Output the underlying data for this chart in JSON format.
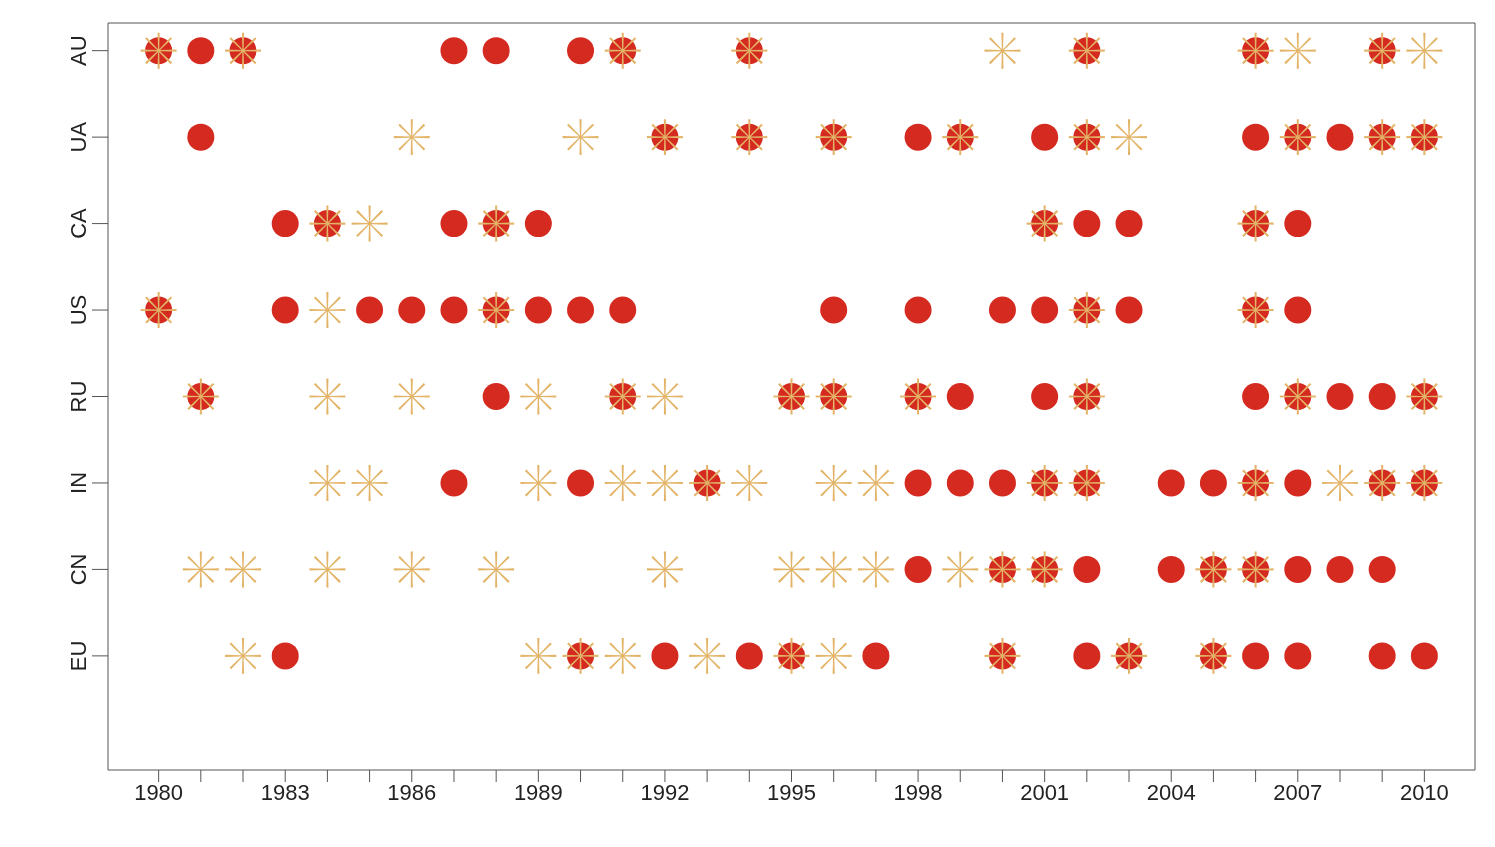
{
  "chart_data": {
    "type": "scatter",
    "orientation": "horizontal",
    "categories": [
      "AU",
      "UA",
      "CA",
      "US",
      "RU",
      "IN",
      "CN",
      "EU",
      null
    ],
    "xlim": [
      1978.8,
      2011.2
    ],
    "xticks": [
      1980,
      {
        "value": 1981,
        "label": null
      },
      {
        "value": 1982,
        "label": null
      },
      1983,
      {
        "value": 1984,
        "label": null
      },
      {
        "value": 1985,
        "label": null
      },
      1986,
      {
        "value": 1987,
        "label": null
      },
      {
        "value": 1988,
        "label": null
      },
      1989,
      {
        "value": 1990,
        "label": null
      },
      {
        "value": 1991,
        "label": null
      },
      1992,
      {
        "value": 1993,
        "label": null
      },
      {
        "value": 1994,
        "label": null
      },
      1995,
      {
        "value": 1996,
        "label": null
      },
      {
        "value": 1997,
        "label": null
      },
      1998,
      {
        "value": 1999,
        "label": null
      },
      {
        "value": 2000,
        "label": null
      },
      2001,
      {
        "value": 2002,
        "label": null
      },
      {
        "value": 2003,
        "label": null
      },
      2004,
      {
        "value": 2005,
        "label": null
      },
      {
        "value": 2006,
        "label": null
      },
      2007,
      {
        "value": 2008,
        "label": null
      },
      {
        "value": 2009,
        "label": null
      },
      2010
    ],
    "grid": false,
    "legend": false,
    "series": [
      {
        "color": "#d42a20",
        "marker": "circle",
        "values": [
          1980,
          1981,
          1982,
          1987,
          1988,
          1990,
          1991,
          1994,
          2002,
          2006,
          2009,
          1981,
          1992,
          1994,
          1996,
          1998,
          1999,
          2001,
          2002,
          2006,
          2007,
          2008,
          2009,
          2010,
          1983,
          1984,
          1987,
          1988,
          1989,
          2001,
          2002,
          2003,
          2006,
          2007,
          1980,
          1983,
          1985,
          1986,
          1987,
          1988,
          1989,
          1990,
          1991,
          1996,
          1998,
          2000,
          2001,
          2002,
          2003,
          2006,
          2007,
          1981,
          1988,
          1991,
          1995,
          1996,
          1998,
          1999,
          2001,
          2002,
          2006,
          2007,
          2008,
          2009,
          2010,
          1987,
          1990,
          1993,
          1998,
          1999,
          2000,
          2001,
          2002,
          2004,
          2005,
          2006,
          2007,
          2009,
          2010,
          1998,
          2000,
          2001,
          2002,
          2004,
          2005,
          2006,
          2007,
          2008,
          2009,
          1983,
          1990,
          1992,
          1994,
          1995,
          1997,
          2000,
          2002,
          2003,
          2005,
          2006,
          2007,
          2009,
          2010
        ],
        "x": [
          "AU",
          "AU",
          "AU",
          "AU",
          "AU",
          "AU",
          "AU",
          "AU",
          "AU",
          "AU",
          "AU",
          "UA",
          "UA",
          "UA",
          "UA",
          "UA",
          "UA",
          "UA",
          "UA",
          "UA",
          "UA",
          "UA",
          "UA",
          "UA",
          "CA",
          "CA",
          "CA",
          "CA",
          "CA",
          "CA",
          "CA",
          "CA",
          "CA",
          "CA",
          "US",
          "US",
          "US",
          "US",
          "US",
          "US",
          "US",
          "US",
          "US",
          "US",
          "US",
          "US",
          "US",
          "US",
          "US",
          "US",
          "US",
          "RU",
          "RU",
          "RU",
          "RU",
          "RU",
          "RU",
          "RU",
          "RU",
          "RU",
          "RU",
          "RU",
          "RU",
          "RU",
          "RU",
          "IN",
          "IN",
          "IN",
          "IN",
          "IN",
          "IN",
          "IN",
          "IN",
          "IN",
          "IN",
          "IN",
          "IN",
          "IN",
          "IN",
          "CN",
          "CN",
          "CN",
          "CN",
          "CN",
          "CN",
          "CN",
          "CN",
          "CN",
          "CN",
          "EU",
          "EU",
          "EU",
          "EU",
          "EU",
          "EU",
          "EU",
          "EU",
          "EU",
          "EU",
          "EU",
          "EU",
          "EU",
          "EU"
        ]
      },
      {
        "color": "#e3b467",
        "marker": "cross",
        "values": [
          1980,
          1982,
          1991,
          1994,
          2000,
          2002,
          2006,
          2007,
          2009,
          2010,
          1986,
          1990,
          1992,
          1994,
          1996,
          1999,
          2002,
          2003,
          2007,
          2009,
          2010,
          1984,
          1985,
          1988,
          2001,
          2006,
          1980,
          1984,
          1988,
          2002,
          2006,
          1981,
          1984,
          1986,
          1989,
          1991,
          1992,
          1995,
          1996,
          1998,
          2002,
          2007,
          2010,
          1984,
          1985,
          1989,
          1991,
          1992,
          1993,
          1994,
          1996,
          1997,
          2001,
          2002,
          2006,
          2008,
          2009,
          2010,
          1981,
          1982,
          1984,
          1986,
          1988,
          1992,
          1995,
          1996,
          1997,
          1999,
          2000,
          2001,
          2005,
          2006,
          1982,
          1989,
          1990,
          1991,
          1993,
          1995,
          1996,
          2000,
          2003,
          2005
        ],
        "x": [
          "AU",
          "AU",
          "AU",
          "AU",
          "AU",
          "AU",
          "AU",
          "AU",
          "AU",
          "AU",
          "UA",
          "UA",
          "UA",
          "UA",
          "UA",
          "UA",
          "UA",
          "UA",
          "UA",
          "UA",
          "UA",
          "CA",
          "CA",
          "CA",
          "CA",
          "CA",
          "US",
          "US",
          "US",
          "US",
          "US",
          "RU",
          "RU",
          "RU",
          "RU",
          "RU",
          "RU",
          "RU",
          "RU",
          "RU",
          "RU",
          "RU",
          "RU",
          "IN",
          "IN",
          "IN",
          "IN",
          "IN",
          "IN",
          "IN",
          "IN",
          "IN",
          "IN",
          "IN",
          "IN",
          "IN",
          "IN",
          "IN",
          "CN",
          "CN",
          "CN",
          "CN",
          "CN",
          "CN",
          "CN",
          "CN",
          "CN",
          "CN",
          "CN",
          "CN",
          "CN",
          "CN",
          "EU",
          "EU",
          "EU",
          "EU",
          "EU",
          "EU",
          "EU",
          "EU",
          "EU",
          "EU"
        ]
      }
    ]
  }
}
